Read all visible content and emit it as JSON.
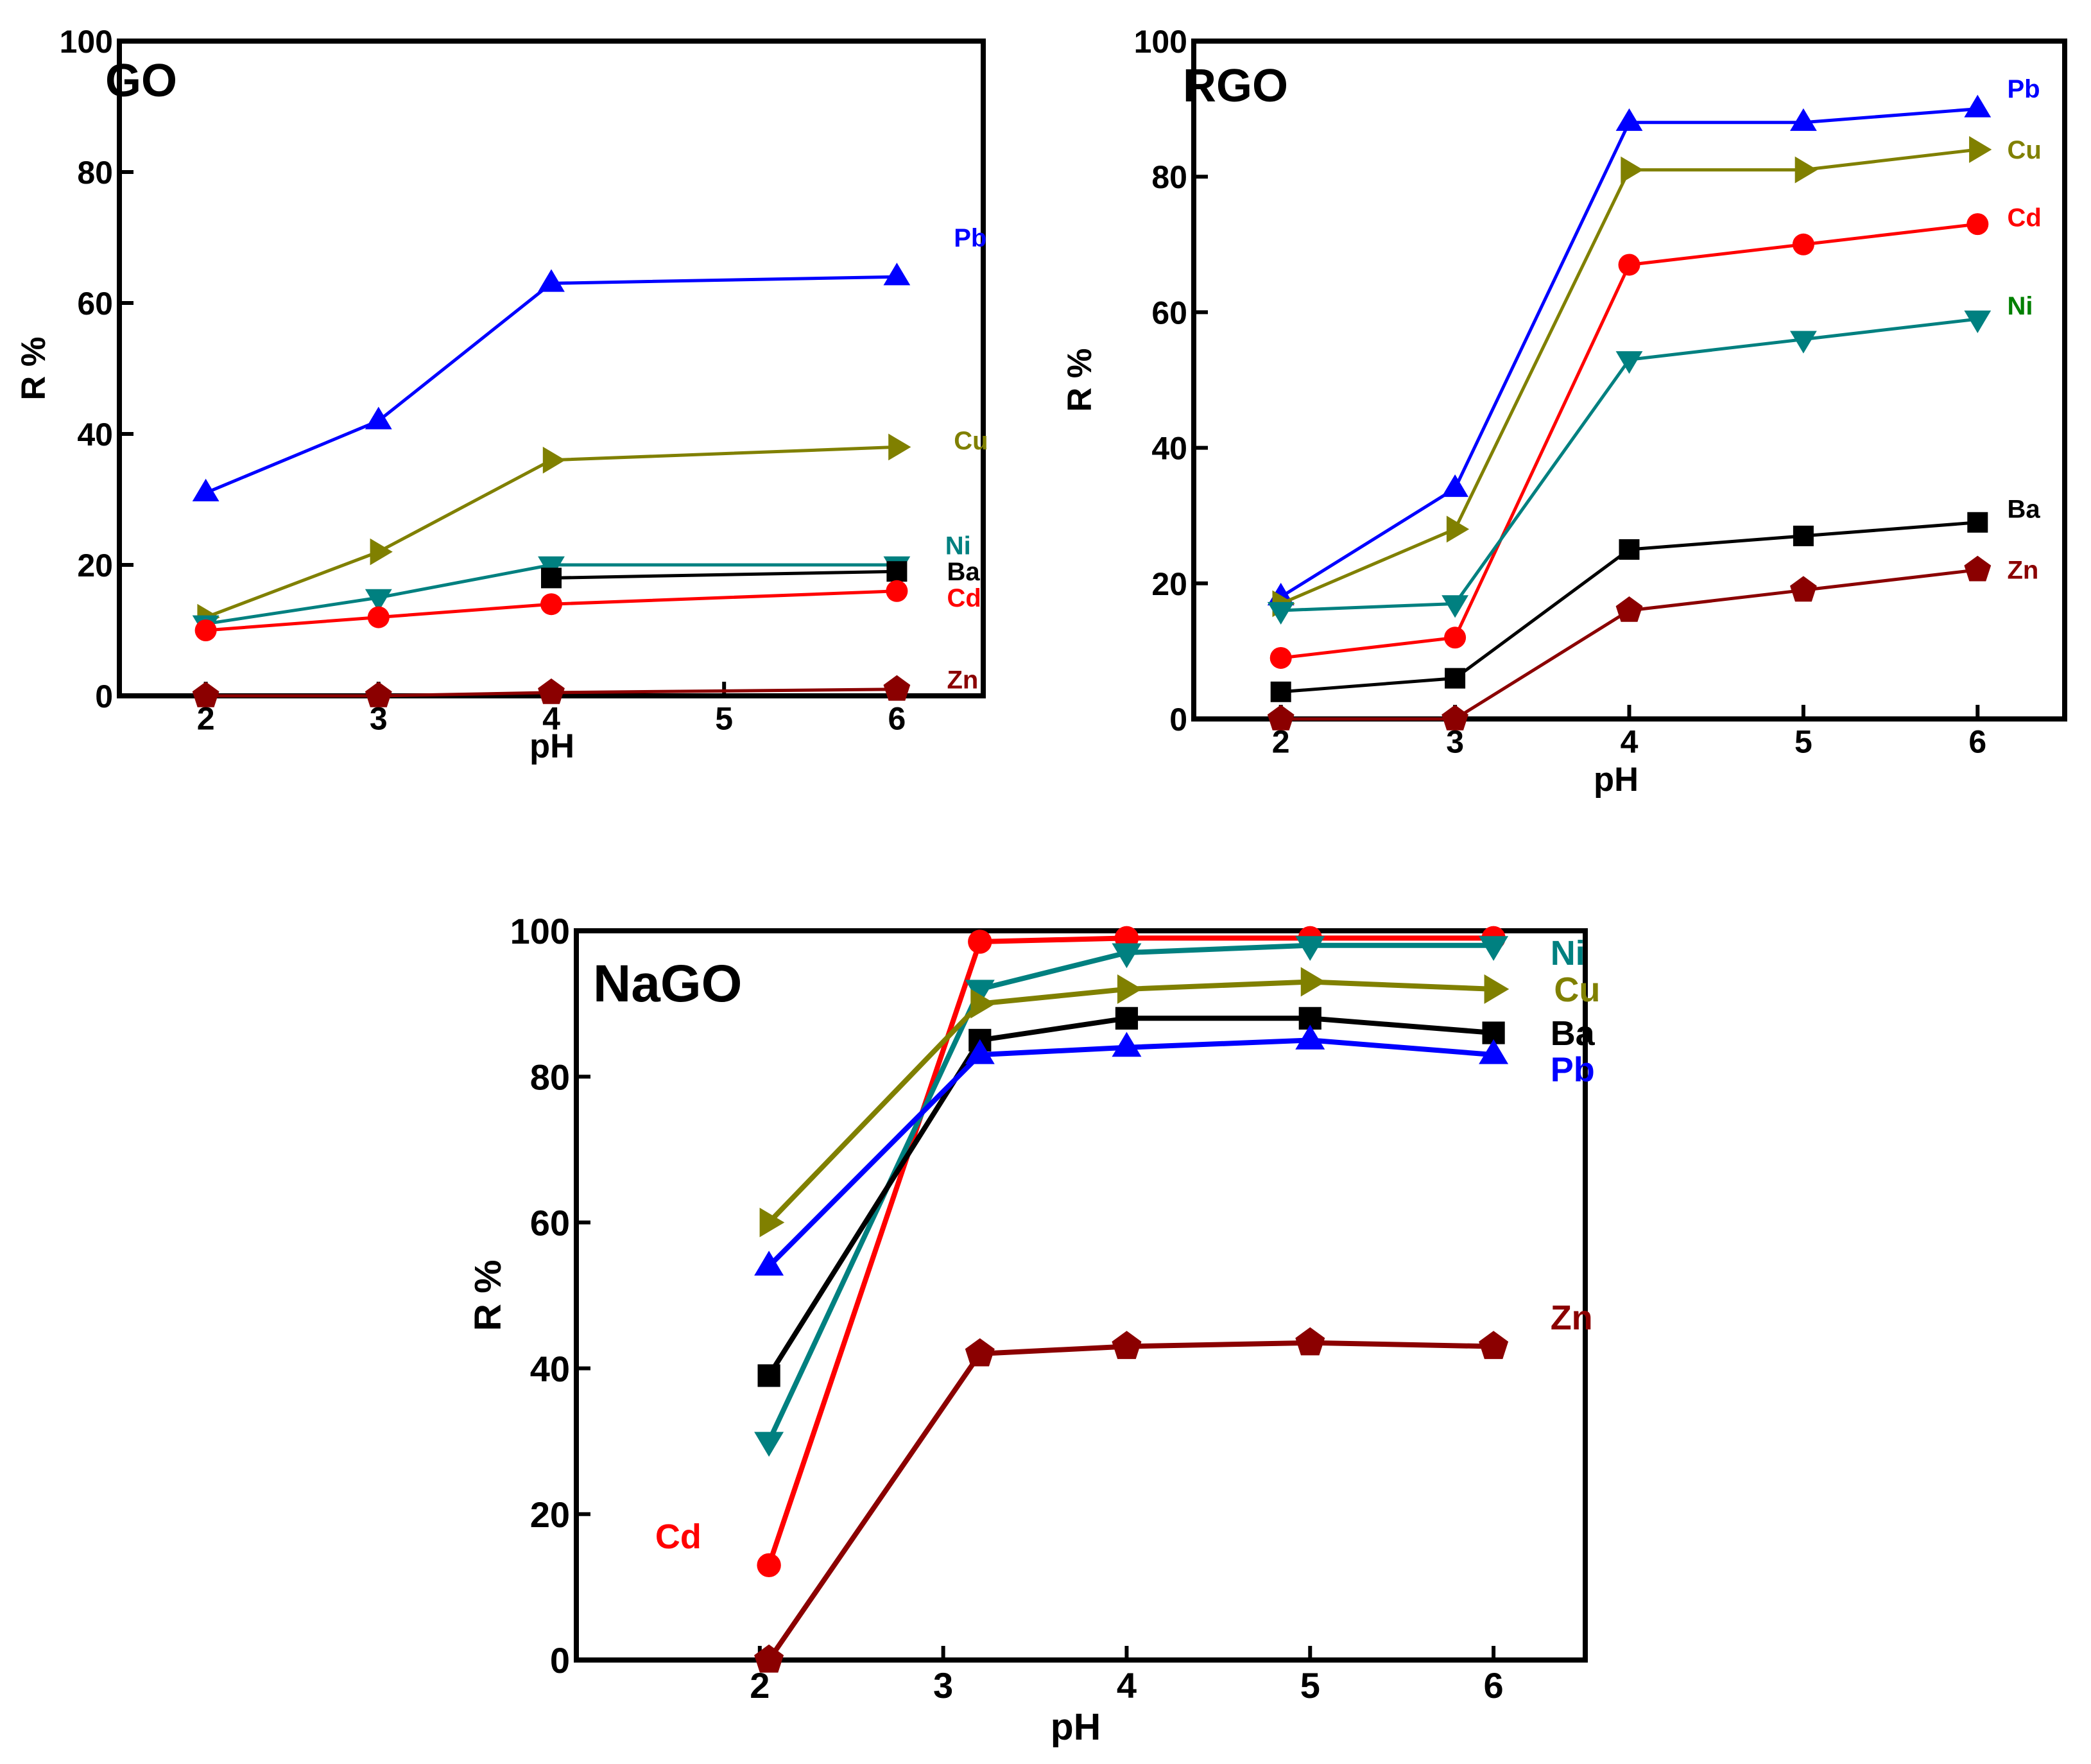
{
  "colors": {
    "Pb": "#0000ff",
    "Cu": "#808000",
    "Ni": "#008080",
    "Ba": "#000000",
    "Cd": "#ff0000",
    "Zn": "#8b0000"
  },
  "label_colors": {
    "GO": {
      "Pb": "#0000ff",
      "Cu": "#808000",
      "Ni": "#008080",
      "Ba": "#000000",
      "Cd": "#ff0000",
      "Zn": "#8b0000"
    },
    "RGO": {
      "Pb": "#0000ff",
      "Cu": "#808000",
      "Cd": "#ff0000",
      "Ni": "#008000",
      "Ba": "#000000",
      "Zn": "#8b0000"
    },
    "NaGO": {
      "Ni": "#008080",
      "Cu": "#808000",
      "Ba": "#000000",
      "Pb": "#0000ff",
      "Zn": "#8b0000",
      "Cd": "#ff0000"
    }
  },
  "chart_data": [
    {
      "type": "line",
      "title": "GO",
      "xlabel": "pH",
      "ylabel": "R %",
      "xlim": [
        1.5,
        6.5
      ],
      "ylim": [
        0,
        100
      ],
      "xticks": [
        2,
        3,
        4,
        5,
        6
      ],
      "yticks": [
        0,
        20,
        40,
        60,
        80,
        100
      ],
      "series": [
        {
          "name": "Pb",
          "marker": "triangle-up",
          "x": [
            2,
            3,
            4,
            6
          ],
          "y": [
            31,
            42,
            63,
            64
          ]
        },
        {
          "name": "Cu",
          "marker": "triangle-right",
          "x": [
            2,
            3,
            4,
            6
          ],
          "y": [
            12,
            22,
            36,
            38
          ]
        },
        {
          "name": "Ni",
          "marker": "triangle-down",
          "x": [
            2,
            3,
            4,
            6
          ],
          "y": [
            11,
            15,
            20,
            20
          ]
        },
        {
          "name": "Ba",
          "marker": "square",
          "x": [
            4,
            6
          ],
          "y": [
            18,
            19
          ]
        },
        {
          "name": "Cd",
          "marker": "circle",
          "x": [
            2,
            3,
            4,
            6
          ],
          "y": [
            10,
            12,
            14,
            16
          ]
        },
        {
          "name": "Zn",
          "marker": "pentagon",
          "x": [
            2,
            3,
            4,
            6
          ],
          "y": [
            0,
            0,
            0.5,
            1
          ]
        }
      ],
      "labels": [
        {
          "text": "Pb",
          "x": 6.33,
          "y": 70
        },
        {
          "text": "Cu",
          "x": 6.33,
          "y": 39
        },
        {
          "text": "Ni",
          "x": 6.28,
          "y": 23
        },
        {
          "text": "Ba",
          "x": 6.29,
          "y": 19
        },
        {
          "text": "Cd",
          "x": 6.29,
          "y": 15
        },
        {
          "text": "Zn",
          "x": 6.29,
          "y": 2.5
        }
      ]
    },
    {
      "type": "line",
      "title": "RGO",
      "xlabel": "pH",
      "ylabel": "R %",
      "xlim": [
        1.5,
        6.5
      ],
      "ylim": [
        0,
        100
      ],
      "xticks": [
        2,
        3,
        4,
        5,
        6
      ],
      "yticks": [
        0,
        20,
        40,
        60,
        80,
        100
      ],
      "series": [
        {
          "name": "Pb",
          "marker": "triangle-up",
          "x": [
            2,
            3,
            4,
            5,
            6
          ],
          "y": [
            18,
            34,
            88,
            88,
            90
          ]
        },
        {
          "name": "Cu",
          "marker": "triangle-right",
          "x": [
            2,
            3,
            4,
            5,
            6
          ],
          "y": [
            17,
            28,
            81,
            81,
            84
          ]
        },
        {
          "name": "Cd",
          "marker": "circle",
          "x": [
            2,
            3,
            4,
            5,
            6
          ],
          "y": [
            9,
            12,
            67,
            70,
            73
          ]
        },
        {
          "name": "Ni",
          "marker": "triangle-down",
          "x": [
            2,
            3,
            4,
            5,
            6
          ],
          "y": [
            16,
            17,
            53,
            56,
            59
          ]
        },
        {
          "name": "Ba",
          "marker": "square",
          "x": [
            2,
            3,
            4,
            5,
            6
          ],
          "y": [
            4,
            6,
            25,
            27,
            29
          ]
        },
        {
          "name": "Zn",
          "marker": "pentagon",
          "x": [
            2,
            3,
            4,
            5,
            6
          ],
          "y": [
            0,
            0,
            16,
            19,
            22
          ]
        }
      ],
      "labels": [
        {
          "text": "Pb",
          "x": 6.17,
          "y": 93
        },
        {
          "text": "Cu",
          "x": 6.17,
          "y": 84
        },
        {
          "text": "Cd",
          "x": 6.17,
          "y": 74
        },
        {
          "text": "Ni",
          "x": 6.17,
          "y": 61
        },
        {
          "text": "Ba",
          "x": 6.17,
          "y": 31
        },
        {
          "text": "Zn",
          "x": 6.17,
          "y": 22
        }
      ]
    },
    {
      "type": "line",
      "title": "NaGO",
      "xlabel": "pH",
      "ylabel": "R %",
      "xlim": [
        1.0,
        6.5
      ],
      "ylim": [
        0,
        100
      ],
      "xticks": [
        2,
        3,
        4,
        5,
        6
      ],
      "yticks": [
        0,
        20,
        40,
        60,
        80,
        100
      ],
      "series": [
        {
          "name": "Cd",
          "marker": "circle",
          "x": [
            2.05,
            3.2,
            4,
            5,
            6
          ],
          "y": [
            13,
            98.5,
            99,
            99,
            99
          ]
        },
        {
          "name": "Ni",
          "marker": "triangle-down",
          "x": [
            2.05,
            3.2,
            4,
            5,
            6
          ],
          "y": [
            30,
            92,
            97,
            98,
            98
          ]
        },
        {
          "name": "Cu",
          "marker": "triangle-right",
          "x": [
            2.05,
            3.2,
            4,
            5,
            6
          ],
          "y": [
            60,
            90,
            92,
            93,
            92
          ]
        },
        {
          "name": "Ba",
          "marker": "square",
          "x": [
            2.05,
            3.2,
            4,
            5,
            6
          ],
          "y": [
            39,
            85,
            88,
            88,
            86
          ]
        },
        {
          "name": "Pb",
          "marker": "triangle-up",
          "x": [
            2.05,
            3.2,
            4,
            5,
            6
          ],
          "y": [
            54,
            83,
            84,
            85,
            83
          ]
        },
        {
          "name": "Zn",
          "marker": "pentagon",
          "x": [
            2.05,
            3.2,
            4,
            5,
            6
          ],
          "y": [
            0,
            42,
            43,
            43.5,
            43
          ]
        }
      ],
      "labels": [
        {
          "text": "Ni",
          "x": 6.31,
          "y": 97
        },
        {
          "text": "Cu",
          "x": 6.33,
          "y": 92
        },
        {
          "text": "Ba",
          "x": 6.31,
          "y": 86
        },
        {
          "text": "Pb",
          "x": 6.31,
          "y": 81
        },
        {
          "text": "Zn",
          "x": 6.31,
          "y": 47
        },
        {
          "text": "Cd",
          "x": 1.43,
          "y": 17
        }
      ]
    }
  ]
}
